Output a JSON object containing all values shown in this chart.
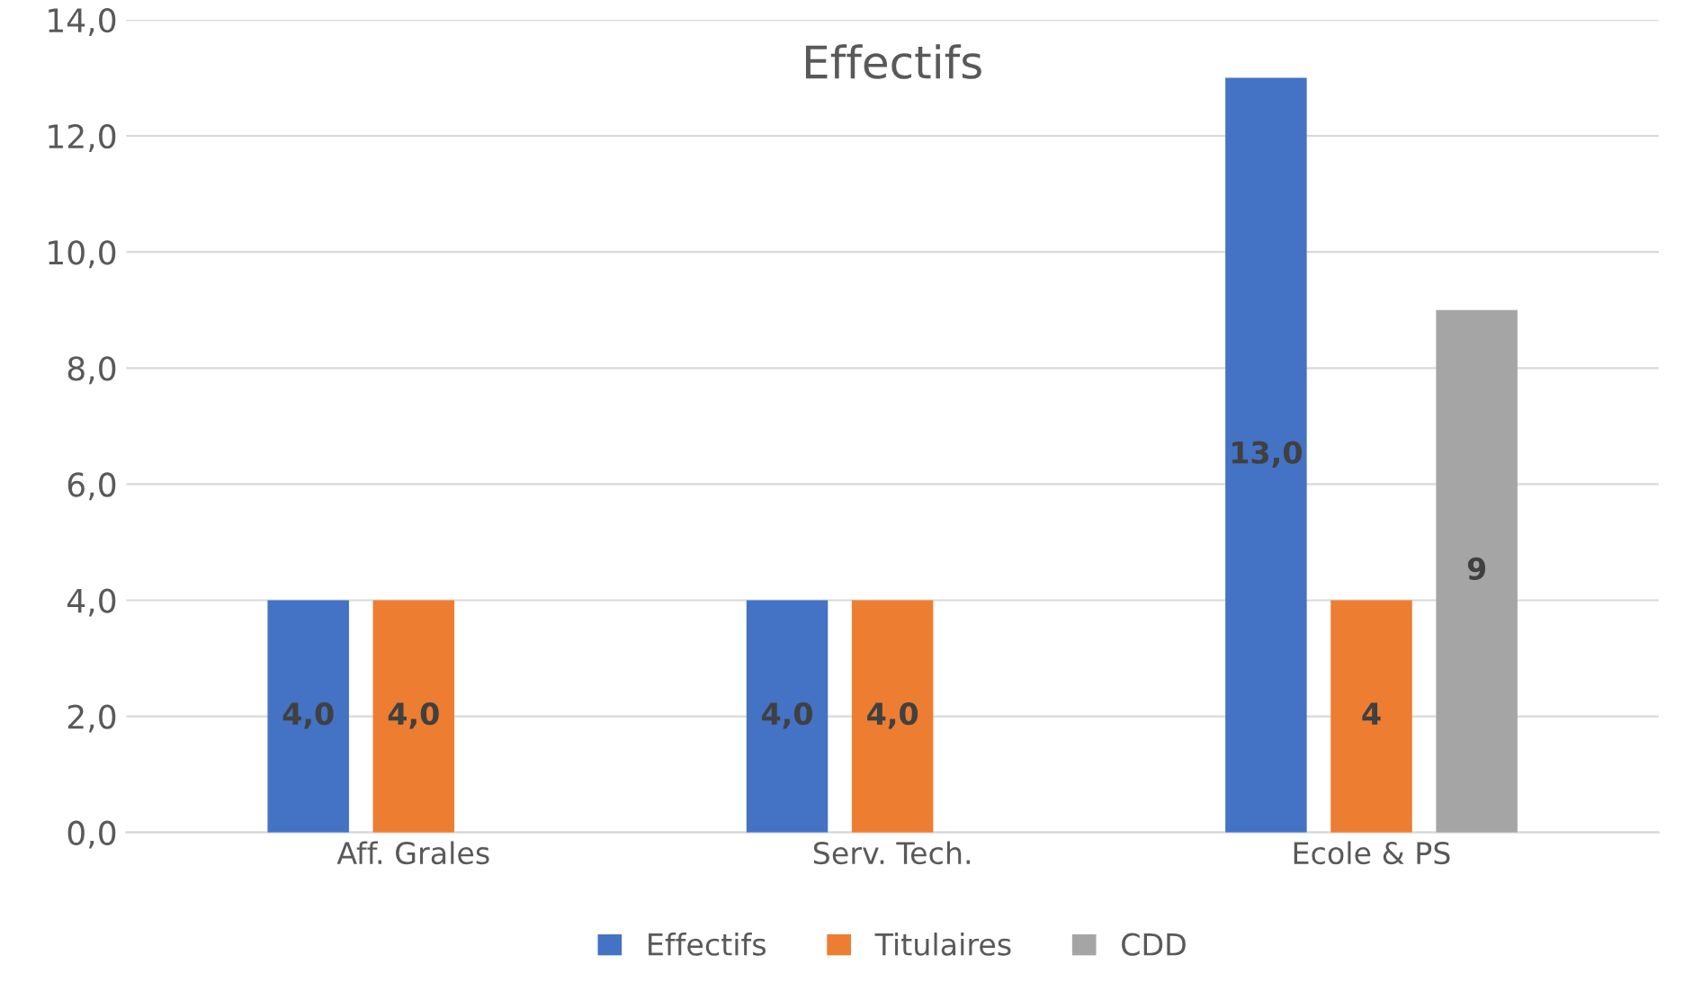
{
  "chart_data": {
    "type": "bar",
    "title": "Effectifs",
    "categories": [
      "Aff. Grales",
      "Serv. Tech.",
      "Ecole & PS"
    ],
    "series": [
      {
        "name": "Effectifs",
        "color": "#4472c4",
        "values": [
          4.0,
          4.0,
          13.0
        ],
        "value_labels": [
          "4,0",
          "4,0",
          "13,0"
        ]
      },
      {
        "name": "Titulaires",
        "color": "#ed7d31",
        "values": [
          4.0,
          4.0,
          4.0
        ],
        "value_labels": [
          "4,0",
          "4,0",
          "4"
        ]
      },
      {
        "name": "CDD",
        "color": "#a5a5a5",
        "values": [
          null,
          null,
          9.0
        ],
        "value_labels": [
          null,
          null,
          "9"
        ]
      }
    ],
    "ylim": [
      0,
      14
    ],
    "yticks": [
      {
        "value": 0,
        "label": "0,0"
      },
      {
        "value": 2,
        "label": "2,0"
      },
      {
        "value": 4,
        "label": "4,0"
      },
      {
        "value": 6,
        "label": "6,0"
      },
      {
        "value": 8,
        "label": "8,0"
      },
      {
        "value": 10,
        "label": "10,0"
      },
      {
        "value": 12,
        "label": "12,0"
      },
      {
        "value": 14,
        "label": "14,0"
      }
    ],
    "grid": "y",
    "legend": "bottom"
  }
}
